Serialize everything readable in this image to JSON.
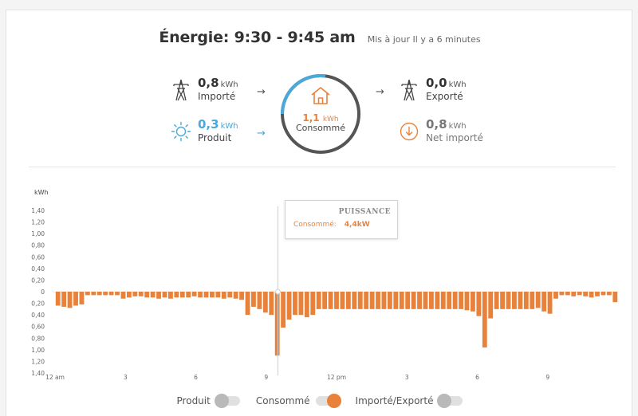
{
  "header": {
    "title": "Énergie: 9:30 - 9:45 am",
    "updated": "Mis à jour Il y a 6 minutes"
  },
  "imported": {
    "value": "0,8",
    "unit": "kWh",
    "label": "Importé"
  },
  "produced": {
    "value": "0,3",
    "unit": "kWh",
    "label": "Produit"
  },
  "consumed": {
    "value": "1,1",
    "unit": "kWh",
    "label": "Consommé"
  },
  "exported": {
    "value": "0,0",
    "unit": "kWh",
    "label": "Exporté"
  },
  "net_imported": {
    "value": "0,8",
    "unit": "kWh",
    "label": "Net importé"
  },
  "arrows": {
    "right": "→"
  },
  "colors": {
    "accent": "#e8823a",
    "solar": "#4aa9d9",
    "ring_grey": "#555555"
  },
  "icons": {
    "imported": "power-tower-icon",
    "produced": "sun-icon",
    "consumed": "house-icon",
    "exported": "power-tower-icon",
    "net_imported": "down-arrow-circle-icon"
  },
  "ring": {
    "consumed_share_from_solar": 0.27
  },
  "tooltip": {
    "title": "PUISSANCE",
    "label": "Consommé:",
    "value": "4,4kW"
  },
  "legend": [
    {
      "label": "Produit",
      "on": false
    },
    {
      "label": "Consommé",
      "on": true
    },
    {
      "label": "Importé/Exporté",
      "on": false
    }
  ],
  "chart_data": {
    "type": "bar",
    "ylabel": "kWh",
    "ylim": [
      -1.4,
      1.4
    ],
    "y_ticks": [
      "1,40",
      "1,20",
      "1,00",
      "0,80",
      "0,60",
      "0,40",
      "0,20",
      "0",
      "0,20",
      "0,40",
      "0,60",
      "0,80",
      "1,00",
      "1,20",
      "1,40"
    ],
    "x_ticks": [
      "12 am",
      "3",
      "6",
      "9",
      "12 pm",
      "3",
      "6",
      "9"
    ],
    "x_tick_hours": [
      0,
      3,
      6,
      9,
      12,
      15,
      18,
      21
    ],
    "hours_span": [
      0,
      24
    ],
    "interval_hours": 0.25,
    "selected_hour": 9.5,
    "series": [
      {
        "name": "Consommé",
        "color": "#e8823a",
        "values": [
          0.24,
          0.26,
          0.28,
          0.24,
          0.22,
          0.06,
          0.06,
          0.06,
          0.06,
          0.06,
          0.06,
          0.12,
          0.1,
          0.08,
          0.08,
          0.1,
          0.1,
          0.12,
          0.1,
          0.12,
          0.1,
          0.1,
          0.1,
          0.08,
          0.1,
          0.1,
          0.1,
          0.1,
          0.12,
          0.1,
          0.12,
          0.14,
          0.4,
          0.26,
          0.3,
          0.36,
          0.4,
          1.1,
          0.62,
          0.48,
          0.4,
          0.4,
          0.44,
          0.4,
          0.3,
          0.3,
          0.3,
          0.3,
          0.3,
          0.3,
          0.3,
          0.3,
          0.3,
          0.3,
          0.3,
          0.3,
          0.3,
          0.3,
          0.3,
          0.3,
          0.3,
          0.3,
          0.3,
          0.3,
          0.3,
          0.3,
          0.3,
          0.3,
          0.3,
          0.32,
          0.34,
          0.42,
          0.96,
          0.46,
          0.3,
          0.3,
          0.3,
          0.3,
          0.3,
          0.3,
          0.3,
          0.28,
          0.34,
          0.38,
          0.12,
          0.06,
          0.06,
          0.08,
          0.06,
          0.08,
          0.1,
          0.08,
          0.06,
          0.06,
          0.18
        ]
      }
    ]
  }
}
